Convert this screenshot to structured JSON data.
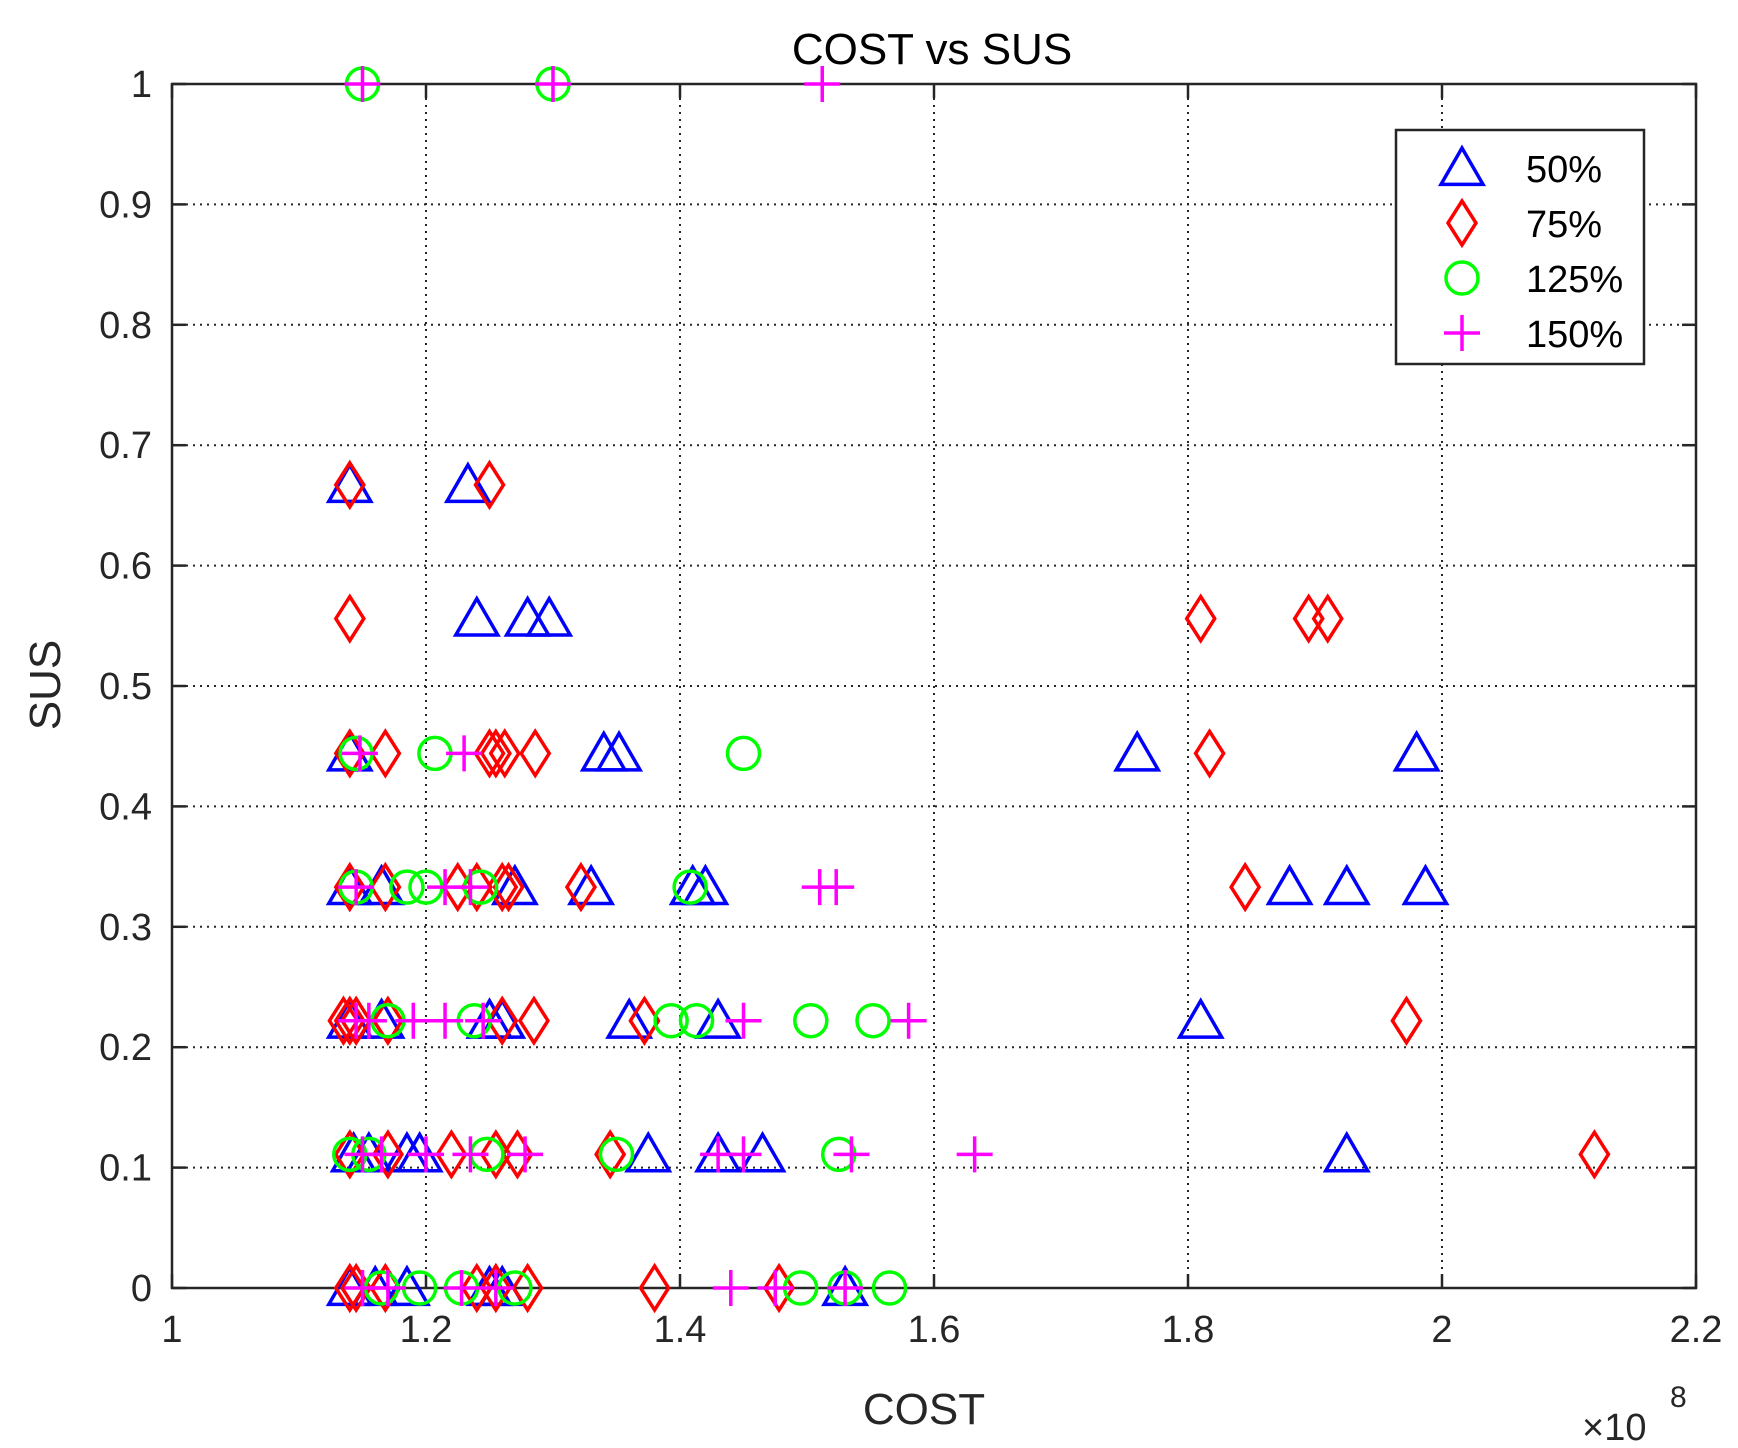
{
  "chart_data": {
    "type": "scatter",
    "title": "COST vs SUS",
    "xlabel": "COST",
    "ylabel": "SUS",
    "x_multiplier_prefix": "×10",
    "x_multiplier_exponent": "8",
    "xlim": [
      1.0,
      2.2
    ],
    "ylim": [
      0,
      1
    ],
    "xticks": [
      1.0,
      1.2,
      1.4,
      1.6,
      1.8,
      2.0,
      2.2
    ],
    "xtick_labels": [
      "1",
      "1.2",
      "1.4",
      "1.6",
      "1.8",
      "2",
      "2.2"
    ],
    "yticks": [
      0,
      0.1,
      0.2,
      0.3,
      0.4,
      0.5,
      0.6,
      0.7,
      0.8,
      0.9,
      1
    ],
    "ytick_labels": [
      "0",
      "0.1",
      "0.2",
      "0.3",
      "0.4",
      "0.5",
      "0.6",
      "0.7",
      "0.8",
      "0.9",
      "1"
    ],
    "grid": true,
    "legend_position": "top-right",
    "series": [
      {
        "name": "50%",
        "marker": "triangle",
        "color": "#0000ff",
        "points": [
          [
            1.14,
            0.667
          ],
          [
            1.233,
            0.667
          ],
          [
            1.24,
            0.556
          ],
          [
            1.28,
            0.556
          ],
          [
            1.297,
            0.556
          ],
          [
            1.14,
            0.444
          ],
          [
            1.34,
            0.444
          ],
          [
            1.352,
            0.444
          ],
          [
            1.76,
            0.444
          ],
          [
            1.98,
            0.444
          ],
          [
            1.14,
            0.333
          ],
          [
            1.165,
            0.333
          ],
          [
            1.27,
            0.333
          ],
          [
            1.33,
            0.333
          ],
          [
            1.41,
            0.333
          ],
          [
            1.42,
            0.333
          ],
          [
            1.88,
            0.333
          ],
          [
            1.925,
            0.333
          ],
          [
            1.987,
            0.333
          ],
          [
            1.14,
            0.222
          ],
          [
            1.165,
            0.222
          ],
          [
            1.25,
            0.222
          ],
          [
            1.26,
            0.222
          ],
          [
            1.36,
            0.222
          ],
          [
            1.43,
            0.222
          ],
          [
            1.81,
            0.222
          ],
          [
            1.143,
            0.111
          ],
          [
            1.155,
            0.111
          ],
          [
            1.185,
            0.111
          ],
          [
            1.195,
            0.111
          ],
          [
            1.375,
            0.111
          ],
          [
            1.43,
            0.111
          ],
          [
            1.465,
            0.111
          ],
          [
            1.925,
            0.111
          ],
          [
            1.14,
            0.0
          ],
          [
            1.16,
            0.0
          ],
          [
            1.185,
            0.0
          ],
          [
            1.25,
            0.0
          ],
          [
            1.26,
            0.0
          ],
          [
            1.53,
            0.0
          ]
        ]
      },
      {
        "name": "75%",
        "marker": "diamond",
        "color": "#ff0000",
        "points": [
          [
            1.14,
            0.667
          ],
          [
            1.25,
            0.667
          ],
          [
            1.14,
            0.556
          ],
          [
            1.81,
            0.556
          ],
          [
            1.895,
            0.556
          ],
          [
            1.91,
            0.556
          ],
          [
            1.14,
            0.444
          ],
          [
            1.168,
            0.444
          ],
          [
            1.25,
            0.444
          ],
          [
            1.255,
            0.444
          ],
          [
            1.262,
            0.444
          ],
          [
            1.286,
            0.444
          ],
          [
            1.817,
            0.444
          ],
          [
            1.14,
            0.333
          ],
          [
            1.168,
            0.333
          ],
          [
            1.225,
            0.333
          ],
          [
            1.24,
            0.333
          ],
          [
            1.26,
            0.333
          ],
          [
            1.265,
            0.333
          ],
          [
            1.322,
            0.333
          ],
          [
            1.845,
            0.333
          ],
          [
            1.135,
            0.222
          ],
          [
            1.14,
            0.222
          ],
          [
            1.145,
            0.222
          ],
          [
            1.17,
            0.222
          ],
          [
            1.26,
            0.222
          ],
          [
            1.285,
            0.222
          ],
          [
            1.372,
            0.222
          ],
          [
            1.972,
            0.222
          ],
          [
            1.14,
            0.111
          ],
          [
            1.17,
            0.111
          ],
          [
            1.22,
            0.111
          ],
          [
            1.255,
            0.111
          ],
          [
            1.272,
            0.111
          ],
          [
            1.345,
            0.111
          ],
          [
            2.12,
            0.111
          ],
          [
            1.14,
            0.0
          ],
          [
            1.145,
            0.0
          ],
          [
            1.168,
            0.0
          ],
          [
            1.24,
            0.0
          ],
          [
            1.255,
            0.0
          ],
          [
            1.28,
            0.0
          ],
          [
            1.38,
            0.0
          ],
          [
            1.478,
            0.0
          ]
        ]
      },
      {
        "name": "125%",
        "marker": "circle",
        "color": "#00ff00",
        "points": [
          [
            1.15,
            1.0
          ],
          [
            1.3,
            1.0
          ],
          [
            1.145,
            0.444
          ],
          [
            1.207,
            0.444
          ],
          [
            1.45,
            0.444
          ],
          [
            1.145,
            0.333
          ],
          [
            1.185,
            0.333
          ],
          [
            1.2,
            0.333
          ],
          [
            1.243,
            0.333
          ],
          [
            1.408,
            0.333
          ],
          [
            1.17,
            0.222
          ],
          [
            1.238,
            0.222
          ],
          [
            1.393,
            0.222
          ],
          [
            1.413,
            0.222
          ],
          [
            1.503,
            0.222
          ],
          [
            1.552,
            0.222
          ],
          [
            1.14,
            0.111
          ],
          [
            1.155,
            0.111
          ],
          [
            1.248,
            0.111
          ],
          [
            1.35,
            0.111
          ],
          [
            1.525,
            0.111
          ],
          [
            1.165,
            0.0
          ],
          [
            1.195,
            0.0
          ],
          [
            1.228,
            0.0
          ],
          [
            1.27,
            0.0
          ],
          [
            1.495,
            0.0
          ],
          [
            1.53,
            0.0
          ],
          [
            1.565,
            0.0
          ]
        ]
      },
      {
        "name": "150%",
        "marker": "plus",
        "color": "#ff00ff",
        "points": [
          [
            1.15,
            1.0
          ],
          [
            1.3,
            1.0
          ],
          [
            1.512,
            1.0
          ],
          [
            1.148,
            0.444
          ],
          [
            1.23,
            0.444
          ],
          [
            1.145,
            0.333
          ],
          [
            1.215,
            0.333
          ],
          [
            1.235,
            0.333
          ],
          [
            1.51,
            0.333
          ],
          [
            1.523,
            0.333
          ],
          [
            1.145,
            0.222
          ],
          [
            1.155,
            0.222
          ],
          [
            1.19,
            0.222
          ],
          [
            1.215,
            0.222
          ],
          [
            1.245,
            0.222
          ],
          [
            1.45,
            0.222
          ],
          [
            1.58,
            0.222
          ],
          [
            1.15,
            0.111
          ],
          [
            1.165,
            0.111
          ],
          [
            1.2,
            0.111
          ],
          [
            1.235,
            0.111
          ],
          [
            1.278,
            0.111
          ],
          [
            1.43,
            0.111
          ],
          [
            1.45,
            0.111
          ],
          [
            1.535,
            0.111
          ],
          [
            1.632,
            0.111
          ],
          [
            1.15,
            0.0
          ],
          [
            1.17,
            0.0
          ],
          [
            1.228,
            0.0
          ],
          [
            1.255,
            0.0
          ],
          [
            1.44,
            0.0
          ],
          [
            1.475,
            0.0
          ],
          [
            1.53,
            0.0
          ]
        ]
      }
    ]
  }
}
